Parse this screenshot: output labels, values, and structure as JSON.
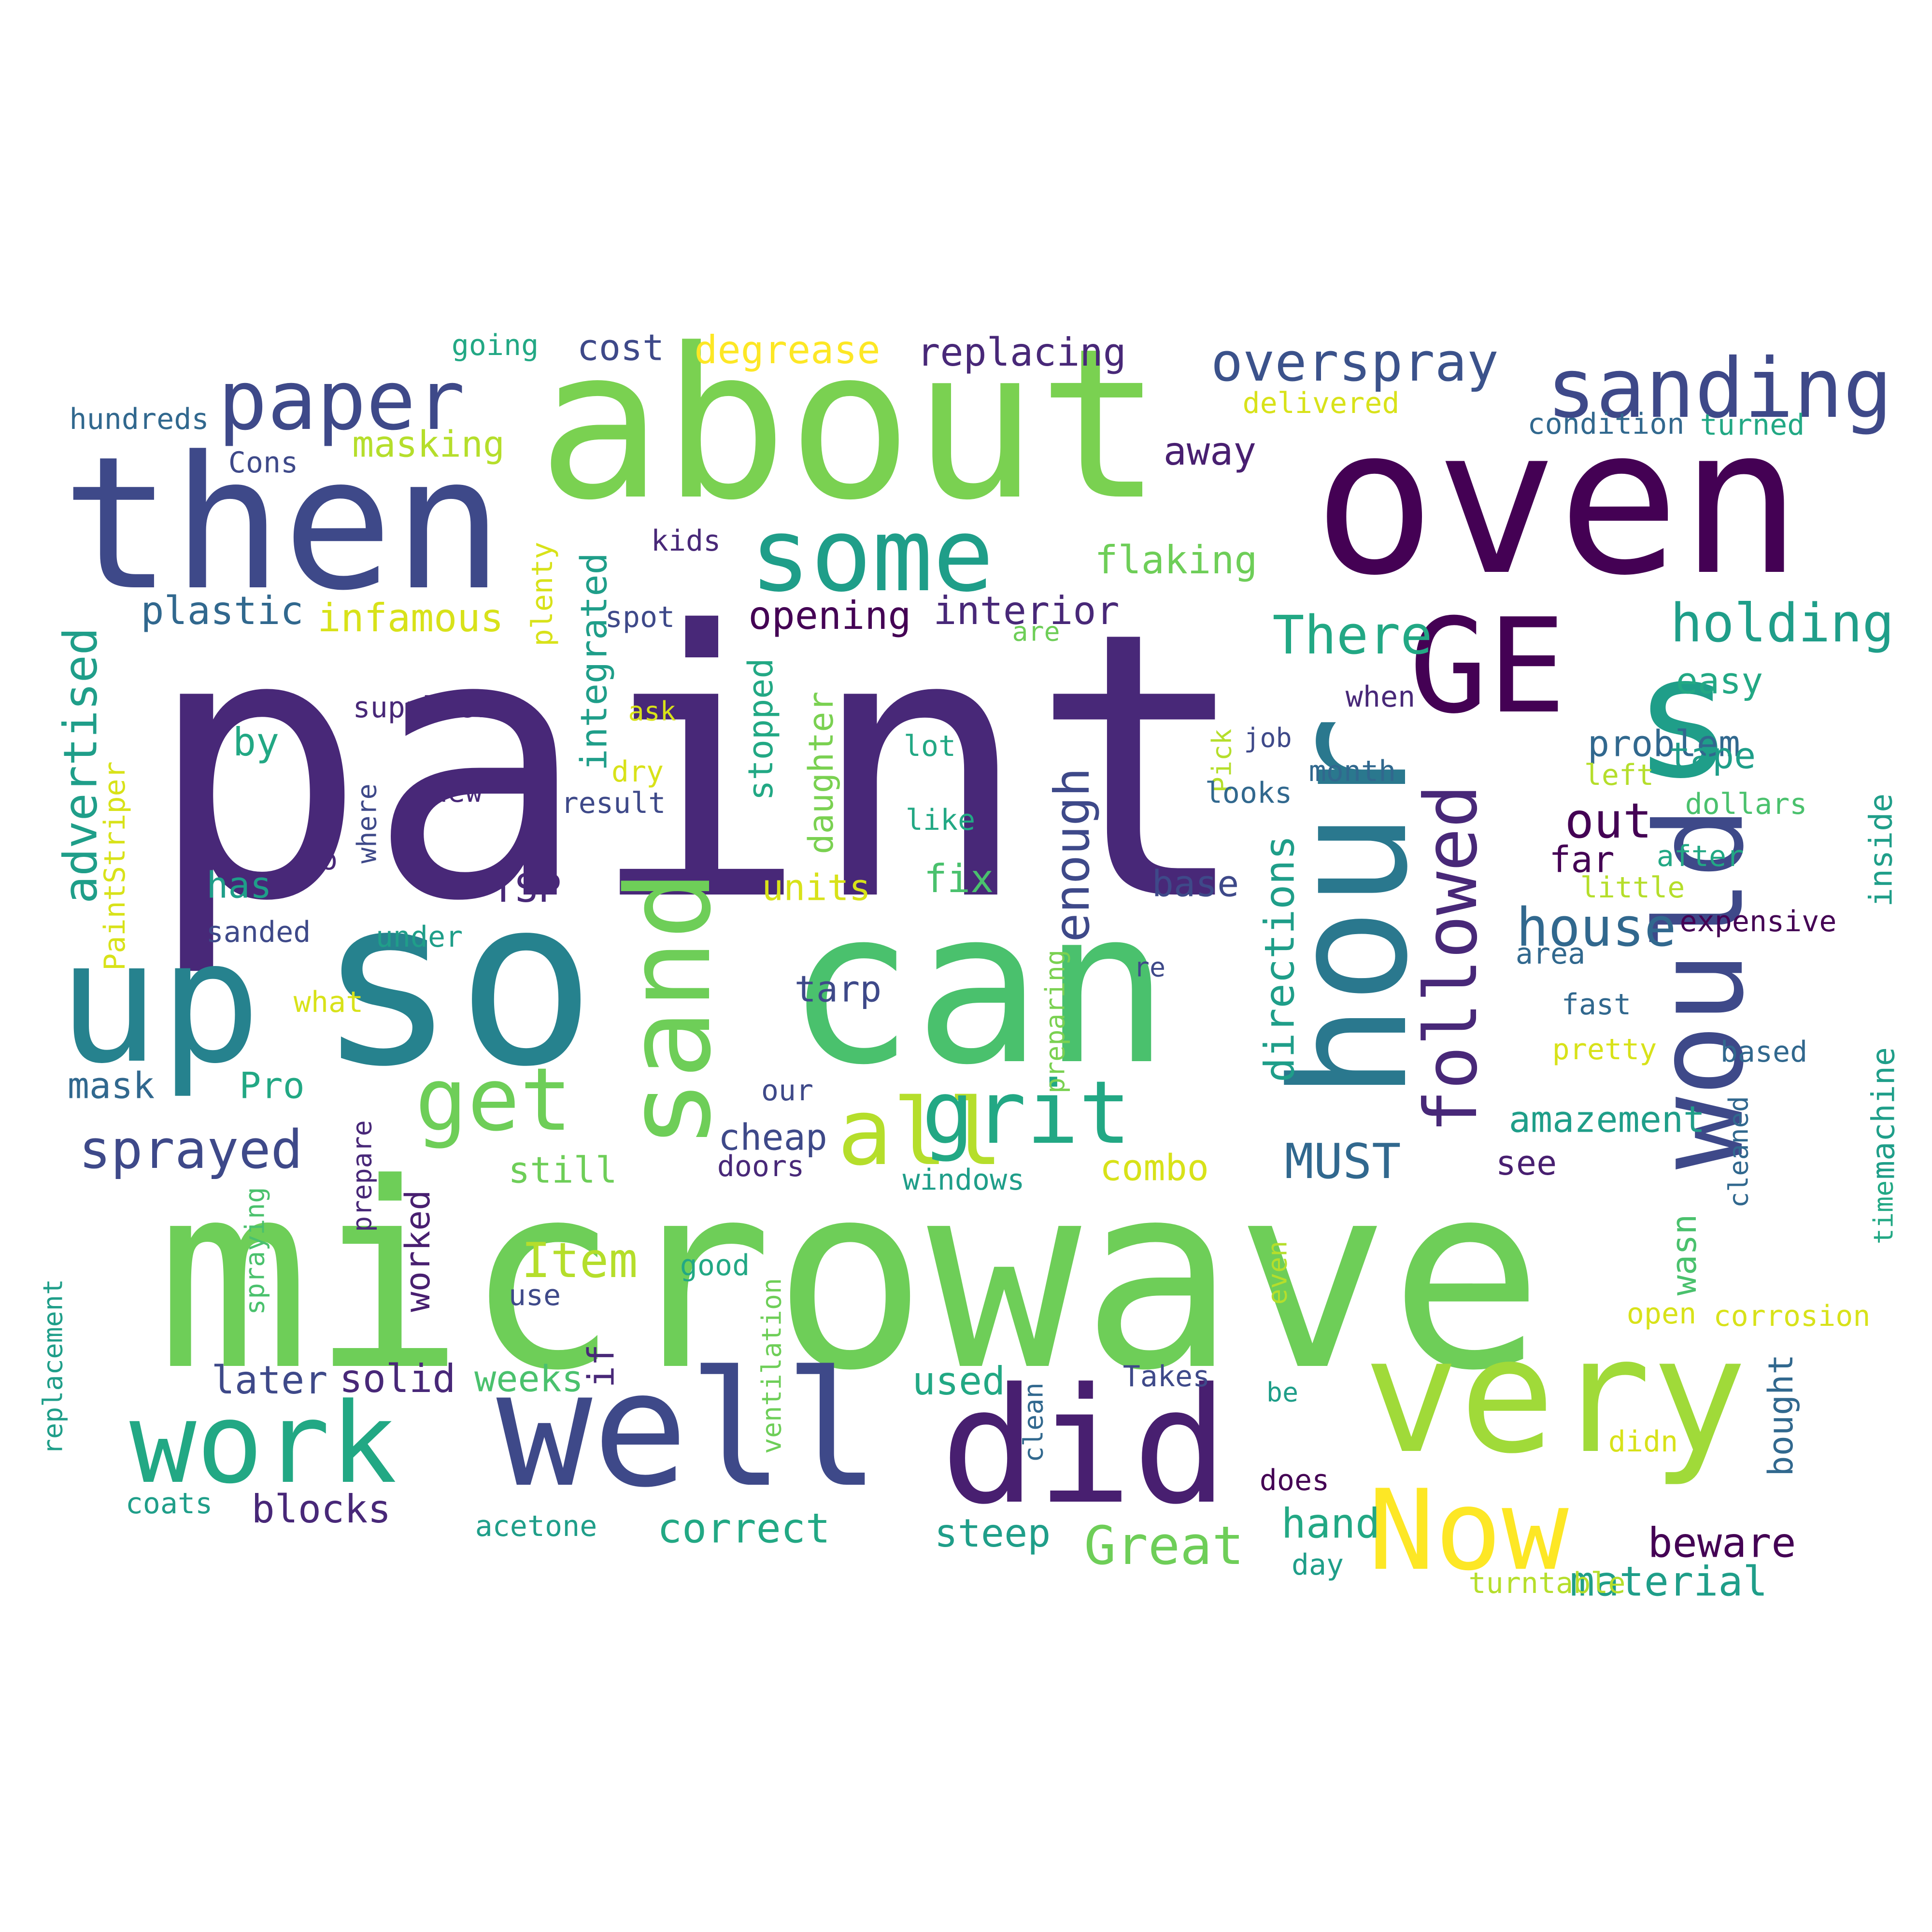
{
  "background": "#ffffff",
  "palette_note_colors": [
    "#440154",
    "#482878",
    "#3e4989",
    "#31688e",
    "#26828e",
    "#1f9e89",
    "#35b779",
    "#6ece58",
    "#b5de2b",
    "#fde725"
  ],
  "words": [
    {
      "text": "paint",
      "color": "#482878"
    },
    {
      "text": "microwave",
      "color": "#6ece58"
    },
    {
      "text": "about",
      "color": "#7ad151"
    },
    {
      "text": "oven",
      "color": "#440154"
    },
    {
      "text": "so",
      "color": "#26828e"
    },
    {
      "text": "can",
      "color": "#4ac16d"
    },
    {
      "text": "then",
      "color": "#3e4989"
    },
    {
      "text": "well",
      "color": "#3e4989"
    },
    {
      "text": "did",
      "color": "#481f70"
    },
    {
      "text": "very",
      "color": "#a0da39"
    },
    {
      "text": "up",
      "color": "#26828e"
    },
    {
      "text": "hour",
      "color": "#2a788e"
    },
    {
      "text": "would",
      "color": "#3e4989"
    },
    {
      "text": "s",
      "color": "#1f9e89"
    },
    {
      "text": "GE",
      "color": "#440154"
    },
    {
      "text": "sand",
      "color": "#6ece58"
    },
    {
      "text": "some",
      "color": "#1f9e89"
    },
    {
      "text": "work",
      "color": "#22a884"
    },
    {
      "text": "Now",
      "color": "#fde725"
    },
    {
      "text": "sanding",
      "color": "#3e4989"
    },
    {
      "text": "paper",
      "color": "#3e4989"
    },
    {
      "text": "get",
      "color": "#6ece58"
    },
    {
      "text": "all",
      "color": "#b5de2b"
    },
    {
      "text": "grit",
      "color": "#22a884"
    },
    {
      "text": "followed",
      "color": "#482878"
    },
    {
      "text": "overspray",
      "color": "#3b528b"
    },
    {
      "text": "sprayed",
      "color": "#3e4989"
    },
    {
      "text": "holding",
      "color": "#1f9e89"
    },
    {
      "text": "house",
      "color": "#31688e"
    },
    {
      "text": "There",
      "color": "#22a884"
    },
    {
      "text": "enough",
      "color": "#3e4989"
    },
    {
      "text": "Great",
      "color": "#6ece58"
    },
    {
      "text": "out",
      "color": "#440154"
    },
    {
      "text": "advertised",
      "color": "#1f9e89"
    },
    {
      "text": "Item",
      "color": "#b5de2b"
    },
    {
      "text": "MUST",
      "color": "#31688e"
    },
    {
      "text": "directions",
      "color": "#1f9e89"
    },
    {
      "text": "material",
      "color": "#1f9e89"
    },
    {
      "text": "correct",
      "color": "#22a884"
    },
    {
      "text": "beware",
      "color": "#440154"
    },
    {
      "text": "hand",
      "color": "#22a884"
    },
    {
      "text": "later",
      "color": "#3e4989"
    },
    {
      "text": "solid",
      "color": "#482878"
    },
    {
      "text": "blocks",
      "color": "#482878"
    },
    {
      "text": "steep",
      "color": "#1f9e89"
    },
    {
      "text": "used",
      "color": "#22a884"
    },
    {
      "text": "masking",
      "color": "#b5de2b"
    },
    {
      "text": "plastic",
      "color": "#31688e"
    },
    {
      "text": "infamous",
      "color": "#d8e219"
    },
    {
      "text": "opening",
      "color": "#440154"
    },
    {
      "text": "interior",
      "color": "#482878"
    },
    {
      "text": "flaking",
      "color": "#6ece58"
    },
    {
      "text": "replacing",
      "color": "#482878"
    },
    {
      "text": "degrease",
      "color": "#fde725"
    },
    {
      "text": "cost",
      "color": "#3e4989"
    },
    {
      "text": "going",
      "color": "#22a884"
    },
    {
      "text": "hundreds",
      "color": "#31688e"
    },
    {
      "text": "Cons",
      "color": "#3e4989"
    },
    {
      "text": "delivered",
      "color": "#d8e219"
    },
    {
      "text": "condition",
      "color": "#31688e"
    },
    {
      "text": "turned",
      "color": "#22a884"
    },
    {
      "text": "away",
      "color": "#481f70"
    },
    {
      "text": "kids",
      "color": "#482878"
    },
    {
      "text": "integrated",
      "color": "#1f9e89"
    },
    {
      "text": "plenty",
      "color": "#d8e219"
    },
    {
      "text": "spot",
      "color": "#3e4989"
    },
    {
      "text": "are",
      "color": "#6ece58"
    },
    {
      "text": "easy",
      "color": "#22a884"
    },
    {
      "text": "problem",
      "color": "#31688e"
    },
    {
      "text": "tape",
      "color": "#1f9e89"
    },
    {
      "text": "left",
      "color": "#b5de2b"
    },
    {
      "text": "dollars",
      "color": "#4ac16d"
    },
    {
      "text": "inside",
      "color": "#1f9e89"
    },
    {
      "text": "after",
      "color": "#22a884"
    },
    {
      "text": "little",
      "color": "#b5de2b"
    },
    {
      "text": "expensive",
      "color": "#440154"
    },
    {
      "text": "area",
      "color": "#31688e"
    },
    {
      "text": "fast",
      "color": "#31688e"
    },
    {
      "text": "pretty",
      "color": "#d8e219"
    },
    {
      "text": "based",
      "color": "#31688e"
    },
    {
      "text": "machine",
      "color": "#1f9e89"
    },
    {
      "text": "time",
      "color": "#22a884"
    },
    {
      "text": "cleaned",
      "color": "#31688e"
    },
    {
      "text": "amazement",
      "color": "#1f9e89"
    },
    {
      "text": "see",
      "color": "#481f70"
    },
    {
      "text": "wasn",
      "color": "#4ac16d"
    },
    {
      "text": "bought",
      "color": "#31688e"
    },
    {
      "text": "corrosion",
      "color": "#d8e219"
    },
    {
      "text": "open",
      "color": "#d8e219"
    },
    {
      "text": "didn",
      "color": "#d8e219"
    },
    {
      "text": "turntable",
      "color": "#b5de2b"
    },
    {
      "text": "does",
      "color": "#440154"
    },
    {
      "text": "day",
      "color": "#1f9e89"
    },
    {
      "text": "be",
      "color": "#1f9e89"
    },
    {
      "text": "even",
      "color": "#b5de2b"
    },
    {
      "text": "Takes",
      "color": "#3e4989"
    },
    {
      "text": "clean",
      "color": "#31688e"
    },
    {
      "text": "ventilation",
      "color": "#6ece58"
    },
    {
      "text": "acetone",
      "color": "#1f9e89"
    },
    {
      "text": "coats",
      "color": "#1f9e89"
    },
    {
      "text": "replacement",
      "color": "#1f9e89"
    },
    {
      "text": "spraying",
      "color": "#4ac16d"
    },
    {
      "text": "prepare",
      "color": "#482878"
    },
    {
      "text": "worked",
      "color": "#481f70"
    },
    {
      "text": "still",
      "color": "#6ece58"
    },
    {
      "text": "weeks",
      "color": "#4ac16d"
    },
    {
      "text": "if",
      "color": "#482878"
    },
    {
      "text": "good",
      "color": "#22a884"
    },
    {
      "text": "use",
      "color": "#3e4989"
    },
    {
      "text": "windows",
      "color": "#1f9e89"
    },
    {
      "text": "doors",
      "color": "#482878"
    },
    {
      "text": "cheap",
      "color": "#3e4989"
    },
    {
      "text": "our",
      "color": "#3e4989"
    },
    {
      "text": "combo",
      "color": "#d8e219"
    },
    {
      "text": "preparing",
      "color": "#7ad151"
    },
    {
      "text": "re",
      "color": "#3e4989"
    },
    {
      "text": "tarp",
      "color": "#3e4989"
    },
    {
      "text": "base",
      "color": "#3e4989"
    },
    {
      "text": "fix",
      "color": "#4ac16d"
    },
    {
      "text": "units",
      "color": "#d8e219"
    },
    {
      "text": "TSP",
      "color": "#482878"
    },
    {
      "text": "has",
      "color": "#1f9e89"
    },
    {
      "text": "sanded",
      "color": "#3e4989"
    },
    {
      "text": "under",
      "color": "#1f9e89"
    },
    {
      "text": "what",
      "color": "#d8e219"
    },
    {
      "text": "mask",
      "color": "#31688e"
    },
    {
      "text": "Pro",
      "color": "#22a884"
    },
    {
      "text": "by",
      "color": "#22a884"
    },
    {
      "text": "supplier",
      "color": "#482878"
    },
    {
      "text": "PaintStriper",
      "color": "#d8e219"
    },
    {
      "text": "do",
      "color": "#482878"
    },
    {
      "text": "where",
      "color": "#3e4989"
    },
    {
      "text": "new",
      "color": "#482878"
    },
    {
      "text": "result",
      "color": "#3e4989"
    },
    {
      "text": "dry",
      "color": "#d8e219"
    },
    {
      "text": "ask",
      "color": "#d8e219"
    },
    {
      "text": "stopped",
      "color": "#22a884"
    },
    {
      "text": "daughter",
      "color": "#7ad151"
    },
    {
      "text": "lot",
      "color": "#22a884"
    },
    {
      "text": "like",
      "color": "#22a884"
    },
    {
      "text": "far",
      "color": "#440154"
    },
    {
      "text": "when",
      "color": "#482878"
    },
    {
      "text": "job",
      "color": "#3e4989"
    },
    {
      "text": "month",
      "color": "#31688e"
    },
    {
      "text": "Pick",
      "color": "#b5de2b"
    },
    {
      "text": "looks",
      "color": "#31688e"
    }
  ]
}
